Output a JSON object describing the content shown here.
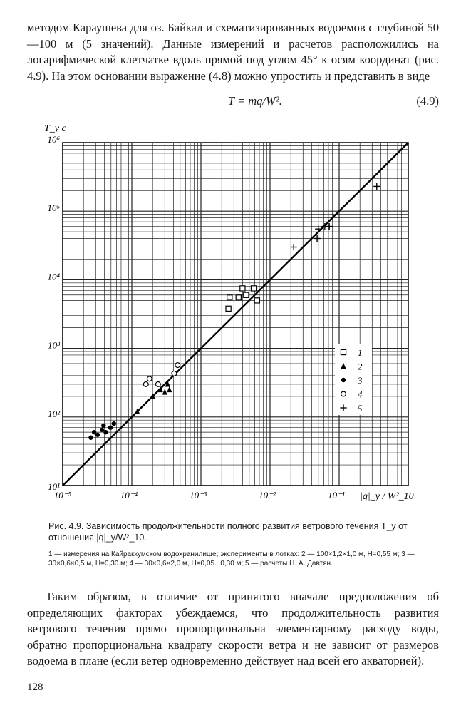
{
  "intro_text": "методом Караушева для оз. Байкал и схематизированных водоемов с глубиной 50—100 м (5 значений). Данные измерений и расчетов расположились на логарифмической клетчатке вдоль прямой под углом 45° к осям координат (рис. 4.9). На этом основании выражение (4.8) можно упростить и представить в виде",
  "equation": {
    "formula": "T = mq/W².",
    "number": "(4.9)"
  },
  "chart_data": {
    "type": "scatter",
    "scale": "log-log",
    "xlim": [
      1e-05,
      1
    ],
    "ylim": [
      10,
      1000000
    ],
    "y_axis_title": "T_y c",
    "x_axis_title": "|q|_y / W²_10",
    "x_ticks": [
      "10⁻⁵",
      "10⁻⁴",
      "10⁻³",
      "10⁻²",
      "10⁻¹"
    ],
    "y_ticks": [
      "10¹",
      "10²",
      "10³",
      "10⁴",
      "10⁵",
      "10⁶"
    ],
    "grid": true,
    "legend_position": "right",
    "line": {
      "x": [
        1e-05,
        1
      ],
      "y": [
        10,
        1000000
      ]
    },
    "series": [
      {
        "name": "1",
        "marker": "square-open",
        "points": [
          [
            0.0025,
            3800
          ],
          [
            0.0026,
            5500
          ],
          [
            0.0035,
            5500
          ],
          [
            0.0045,
            6000
          ],
          [
            0.004,
            7500
          ],
          [
            0.0058,
            7500
          ],
          [
            0.0065,
            5000
          ]
        ]
      },
      {
        "name": "2",
        "marker": "triangle-filled",
        "points": [
          [
            0.00012,
            120
          ],
          [
            0.0002,
            200
          ],
          [
            0.00026,
            250
          ],
          [
            0.0003,
            230
          ],
          [
            0.00033,
            300
          ],
          [
            0.00035,
            250
          ]
        ]
      },
      {
        "name": "3",
        "marker": "circle-filled",
        "points": [
          [
            2.55e-05,
            50
          ],
          [
            2.85e-05,
            60
          ],
          [
            3.2e-05,
            55
          ],
          [
            3.7e-05,
            65
          ],
          [
            3.9e-05,
            75
          ],
          [
            4.2e-05,
            60
          ],
          [
            4.9e-05,
            70
          ],
          [
            5.5e-05,
            80
          ]
        ]
      },
      {
        "name": "4",
        "marker": "circle-open",
        "points": [
          [
            0.00016,
            300
          ],
          [
            0.00018,
            360
          ],
          [
            0.00024,
            300
          ],
          [
            0.00041,
            430
          ],
          [
            0.00046,
            570
          ]
        ]
      },
      {
        "name": "5",
        "marker": "plus",
        "points": [
          [
            0.022,
            30000
          ],
          [
            0.048,
            40000
          ],
          [
            0.05,
            55000
          ],
          [
            0.062,
            60000
          ],
          [
            0.072,
            60000
          ],
          [
            0.35,
            230000
          ]
        ]
      }
    ]
  },
  "legend": [
    {
      "label": "1",
      "marker": "square-open"
    },
    {
      "label": "2",
      "marker": "triangle-filled"
    },
    {
      "label": "3",
      "marker": "circle-filled"
    },
    {
      "label": "4",
      "marker": "circle-open"
    },
    {
      "label": "5",
      "marker": "plus"
    }
  ],
  "caption_text": "Рис. 4.9. Зависимость продолжительности полного развития ветрового течения T_y от отношения |q|_y/W²_10.",
  "legend_note_text": "1 — измерения на Кайраккумском водохранилище; эксперименты в лотках: 2 — 100×1,2×1,0 м, H=0,55 м; 3 — 30×0,6×0,5 м, H=0,30 м; 4 — 30×0,6×2,0 м, H=0,05...0,30 м; 5 — расчеты Н. А. Давтян.",
  "outro_text": "Таким образом, в отличие от принятого вначале предположения об определяющих факторах убеждаемся, что продолжительность развития ветрового течения прямо пропорциональна элементарному расходу воды, обратно пропорциональна квадрату скорости ветра и не зависит от размеров водоема в плане (если ветер одновременно действует над всей его акваторией).",
  "page_number": "128"
}
